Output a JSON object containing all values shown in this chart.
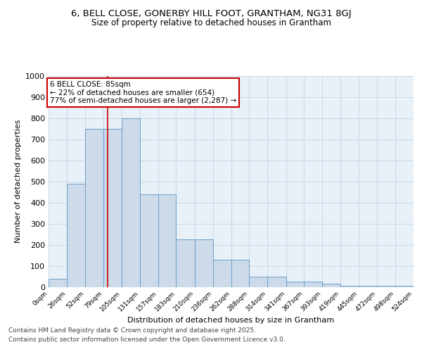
{
  "title_line1": "6, BELL CLOSE, GONERBY HILL FOOT, GRANTHAM, NG31 8GJ",
  "title_line2": "Size of property relative to detached houses in Grantham",
  "xlabel": "Distribution of detached houses by size in Grantham",
  "ylabel": "Number of detached properties",
  "bin_edges": [
    0,
    26,
    52,
    79,
    105,
    131,
    157,
    183,
    210,
    236,
    262,
    288,
    314,
    341,
    367,
    393,
    419,
    445,
    472,
    498,
    524
  ],
  "bar_heights": [
    40,
    490,
    750,
    750,
    800,
    440,
    440,
    225,
    225,
    130,
    130,
    50,
    50,
    25,
    25,
    15,
    5,
    5,
    5,
    5
  ],
  "tick_labels": [
    "0sqm",
    "26sqm",
    "52sqm",
    "79sqm",
    "105sqm",
    "131sqm",
    "157sqm",
    "183sqm",
    "210sqm",
    "236sqm",
    "262sqm",
    "288sqm",
    "314sqm",
    "341sqm",
    "367sqm",
    "393sqm",
    "419sqm",
    "445sqm",
    "472sqm",
    "498sqm",
    "524sqm"
  ],
  "bar_facecolor": "#ccdaea",
  "bar_edgecolor": "#6b9fc8",
  "vline_x": 85,
  "vline_color": "#cc0000",
  "annotation_text": "6 BELL CLOSE: 85sqm\n← 22% of detached houses are smaller (654)\n77% of semi-detached houses are larger (2,287) →",
  "annotation_box_facecolor": "white",
  "annotation_box_edgecolor": "#cc0000",
  "ylim": [
    0,
    1000
  ],
  "yticks": [
    0,
    100,
    200,
    300,
    400,
    500,
    600,
    700,
    800,
    900,
    1000
  ],
  "grid_color": "#c5d5e5",
  "background_color": "#e8f0f8",
  "footer_line1": "Contains HM Land Registry data © Crown copyright and database right 2025.",
  "footer_line2": "Contains public sector information licensed under the Open Government Licence v3.0.",
  "title_fontsize": 9.5,
  "subtitle_fontsize": 8.5,
  "axis_label_fontsize": 8,
  "tick_fontsize": 6.5,
  "footer_fontsize": 6.5,
  "annotation_fontsize": 7.5
}
